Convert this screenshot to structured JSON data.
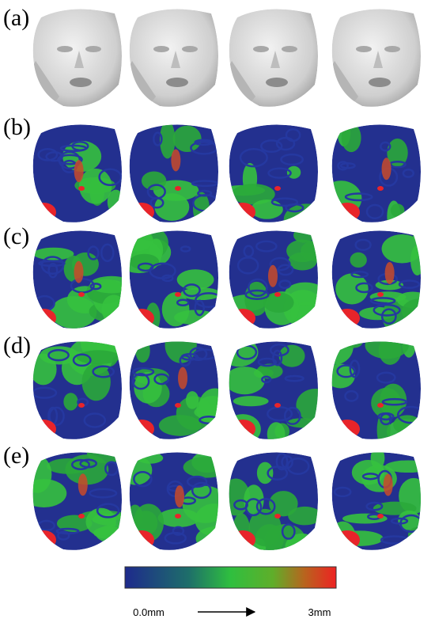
{
  "panels": [
    {
      "label": "(a)"
    },
    {
      "label": "(b)"
    },
    {
      "label": "(c)"
    },
    {
      "label": "(d)"
    },
    {
      "label": "(e)"
    }
  ],
  "colorbar": {
    "min_label": "0.0mm",
    "max_label": "3mm"
  }
}
